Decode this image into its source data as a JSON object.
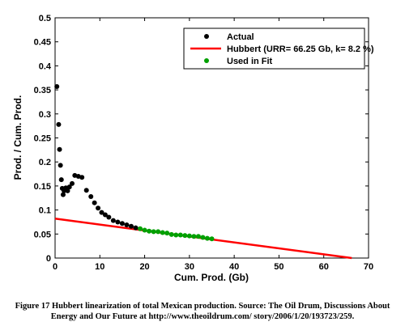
{
  "caption": {
    "line1": "Figure 17 Hubbert linearization of total Mexican production.  Source: The Oil Drum, Discussions About",
    "line2": "Energy and Our Future at http://www.theoildrum.com/  story/2006/1/20/193723/259."
  },
  "chart_data": {
    "type": "scatter",
    "xlabel": "Cum. Prod. (Gb)",
    "ylabel": "Prod. / Cum. Prod.",
    "xlim": [
      0,
      70
    ],
    "ylim": [
      0,
      0.5
    ],
    "xticks": [
      "0",
      "10",
      "20",
      "30",
      "40",
      "50",
      "60",
      "70"
    ],
    "yticks": [
      "0",
      "0.05",
      "0.1",
      "0.15",
      "0.2",
      "0.25",
      "0.3",
      "0.35",
      "0.4",
      "0.45",
      "0.5"
    ],
    "grid": false,
    "legend_placement": "top-right",
    "series": [
      {
        "name": "Actual",
        "kind": "points",
        "color": "#000000",
        "x": [
          0.4,
          0.8,
          1.0,
          1.2,
          1.4,
          1.6,
          1.8,
          2.0,
          2.4,
          2.8,
          3.2,
          3.8,
          4.4,
          5.2,
          6.0,
          7.0,
          8.0,
          8.8,
          9.6,
          10.4,
          11.2,
          12.0,
          13.0,
          14.0,
          15.0,
          16.0,
          17.0,
          18.0
        ],
        "y": [
          0.357,
          0.278,
          0.226,
          0.193,
          0.163,
          0.145,
          0.132,
          0.14,
          0.146,
          0.14,
          0.148,
          0.155,
          0.172,
          0.17,
          0.168,
          0.141,
          0.128,
          0.115,
          0.104,
          0.095,
          0.09,
          0.085,
          0.078,
          0.075,
          0.072,
          0.069,
          0.066,
          0.063
        ]
      },
      {
        "name": "Hubbert (URR=  66.25 Gb, k=  8.2 %)",
        "kind": "line",
        "color": "#ff0000",
        "x": [
          0,
          66.25
        ],
        "y": [
          0.082,
          0
        ]
      },
      {
        "name": "Used in Fit",
        "kind": "points",
        "color": "#00a000",
        "x": [
          19.0,
          20.0,
          21.0,
          22.0,
          23.0,
          24.0,
          25.0,
          26.0,
          27.0,
          28.0,
          29.0,
          30.0,
          31.0,
          32.0,
          33.0,
          34.0,
          35.0
        ],
        "y": [
          0.061,
          0.058,
          0.056,
          0.055,
          0.055,
          0.053,
          0.052,
          0.049,
          0.048,
          0.048,
          0.047,
          0.046,
          0.045,
          0.045,
          0.043,
          0.041,
          0.04
        ]
      }
    ]
  }
}
